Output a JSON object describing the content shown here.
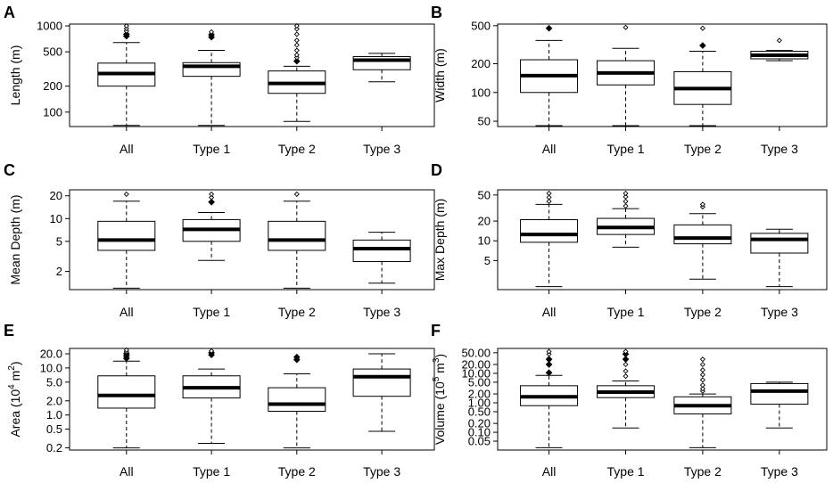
{
  "chart_data": [
    {
      "panel": "A",
      "type": "boxplot",
      "scale": "log",
      "ylabel": "Length (m)",
      "ylabel_parts": [
        "Length (m)"
      ],
      "yticks": [
        100,
        200,
        500,
        1000
      ],
      "ytick_labels": [
        "100",
        "200",
        "500",
        "1000"
      ],
      "ylim": [
        68,
        1050
      ],
      "categories": [
        "All",
        "Type 1",
        "Type 2",
        "Type 3"
      ],
      "boxes": [
        {
          "lo": 70,
          "q1": 200,
          "med": 280,
          "q3": 370,
          "hi": 640,
          "outliers": [
            760,
            800,
            870,
            930,
            1000
          ],
          "filled": [
            760,
            800
          ]
        },
        {
          "lo": 70,
          "q1": 260,
          "med": 340,
          "q3": 375,
          "hi": 520,
          "outliers": [
            740,
            790,
            850
          ],
          "filled": [
            740,
            790
          ]
        },
        {
          "lo": 78,
          "q1": 165,
          "med": 215,
          "q3": 300,
          "hi": 340,
          "outliers": [
            390,
            430,
            460,
            520,
            600,
            680,
            800,
            920,
            1000
          ],
          "filled": [
            390
          ]
        },
        {
          "lo": 225,
          "q1": 310,
          "med": 400,
          "q3": 440,
          "hi": 480,
          "outliers": [],
          "filled": []
        }
      ]
    },
    {
      "panel": "B",
      "type": "boxplot",
      "scale": "log",
      "ylabel": "Width (m)",
      "ylabel_parts": [
        "Width (m)"
      ],
      "yticks": [
        50,
        100,
        200,
        500
      ],
      "ytick_labels": [
        "50",
        "100",
        "200",
        "500"
      ],
      "ylim": [
        44,
        520
      ],
      "categories": [
        "All",
        "Type 1",
        "Type 2",
        "Type 3"
      ],
      "boxes": [
        {
          "lo": 45,
          "q1": 100,
          "med": 150,
          "q3": 220,
          "hi": 350,
          "outliers": [
            470
          ],
          "filled": [
            470
          ]
        },
        {
          "lo": 45,
          "q1": 120,
          "med": 160,
          "q3": 215,
          "hi": 290,
          "outliers": [
            480
          ],
          "filled": []
        },
        {
          "lo": 45,
          "q1": 75,
          "med": 110,
          "q3": 165,
          "hi": 270,
          "outliers": [
            310,
            470
          ],
          "filled": [
            310
          ]
        },
        {
          "lo": 215,
          "q1": 225,
          "med": 245,
          "q3": 270,
          "hi": 275,
          "outliers": [
            350
          ],
          "filled": []
        }
      ]
    },
    {
      "panel": "C",
      "type": "boxplot",
      "scale": "log",
      "ylabel": "Mean Depth (m)",
      "ylabel_parts": [
        "Mean Depth (m)"
      ],
      "yticks": [
        2,
        5,
        10,
        20
      ],
      "ytick_labels": [
        "2",
        "5",
        "10",
        "20"
      ],
      "ylim": [
        1.15,
        24
      ],
      "categories": [
        "All",
        "Type 1",
        "Type 2",
        "Type 3"
      ],
      "boxes": [
        {
          "lo": 1.2,
          "q1": 3.8,
          "med": 5.2,
          "q3": 9.2,
          "hi": 17,
          "outliers": [
            21
          ],
          "filled": []
        },
        {
          "lo": 2.8,
          "q1": 5,
          "med": 7.2,
          "q3": 9.7,
          "hi": 12,
          "outliers": [
            16.5,
            19,
            21
          ],
          "filled": [
            16.5
          ]
        },
        {
          "lo": 1.2,
          "q1": 3.8,
          "med": 5.2,
          "q3": 9.2,
          "hi": 17,
          "outliers": [
            21
          ],
          "filled": []
        },
        {
          "lo": 1.4,
          "q1": 2.7,
          "med": 4,
          "q3": 5.2,
          "hi": 6.6,
          "outliers": [],
          "filled": []
        }
      ]
    },
    {
      "panel": "D",
      "type": "boxplot",
      "scale": "log",
      "ylabel": "Max Depth (m)",
      "ylabel_parts": [
        "Max Depth (m)"
      ],
      "yticks": [
        5,
        10,
        20,
        50
      ],
      "ytick_labels": [
        "5",
        "10",
        "20",
        "50"
      ],
      "ylim": [
        1.8,
        60
      ],
      "categories": [
        "All",
        "Type 1",
        "Type 2",
        "Type 3"
      ],
      "boxes": [
        {
          "lo": 2,
          "q1": 9.5,
          "med": 12.5,
          "q3": 21,
          "hi": 36,
          "outliers": [
            40,
            46,
            53
          ],
          "filled": []
        },
        {
          "lo": 8,
          "q1": 12.5,
          "med": 16,
          "q3": 22,
          "hi": 31,
          "outliers": [
            34,
            40,
            47,
            53
          ],
          "filled": []
        },
        {
          "lo": 2.6,
          "q1": 9,
          "med": 11,
          "q3": 17.5,
          "hi": 26,
          "outliers": [
            33,
            36
          ],
          "filled": []
        },
        {
          "lo": 2,
          "q1": 6.5,
          "med": 10.5,
          "q3": 13,
          "hi": 15,
          "outliers": [],
          "filled": []
        }
      ]
    },
    {
      "panel": "E",
      "type": "boxplot",
      "scale": "log",
      "ylabel": "Area (10^4 m^2)",
      "ylabel_parts": [
        "Area (10",
        "4",
        " m",
        "2",
        ")"
      ],
      "yticks": [
        0.2,
        0.5,
        1.0,
        2.0,
        5.0,
        10.0,
        20.0
      ],
      "ytick_labels": [
        "0.2",
        "0.5",
        "1.0",
        "2.0",
        "5.0",
        "10.0",
        "20.0"
      ],
      "ylim": [
        0.18,
        26
      ],
      "categories": [
        "All",
        "Type 1",
        "Type 2",
        "Type 3"
      ],
      "boxes": [
        {
          "lo": 0.2,
          "q1": 1.4,
          "med": 2.6,
          "q3": 6.8,
          "hi": 14,
          "outliers": [
            16,
            18,
            20,
            22,
            24
          ],
          "filled": [
            16,
            18,
            20
          ]
        },
        {
          "lo": 0.25,
          "q1": 2.3,
          "med": 3.8,
          "q3": 6.8,
          "hi": 9.5,
          "outliers": [
            19,
            21,
            23
          ],
          "filled": [
            19,
            21
          ]
        },
        {
          "lo": 0.2,
          "q1": 1.2,
          "med": 1.7,
          "q3": 3.8,
          "hi": 7.5,
          "outliers": [
            15,
            17
          ],
          "filled": [
            15,
            17
          ]
        },
        {
          "lo": 0.45,
          "q1": 2.5,
          "med": 6.5,
          "q3": 9.5,
          "hi": 20,
          "outliers": [],
          "filled": []
        }
      ]
    },
    {
      "panel": "F",
      "type": "boxplot",
      "scale": "log",
      "ylabel": "Volume (10^5 m^3)",
      "ylabel_parts": [
        "Volume (10",
        "5",
        " m",
        "3",
        ")"
      ],
      "yticks": [
        0.05,
        0.1,
        0.2,
        0.5,
        1.0,
        2.0,
        5.0,
        10.0,
        20.0,
        50.0
      ],
      "ytick_labels": [
        "0.05",
        "0.10",
        "0.20",
        "0.50",
        "1.00",
        "2.00",
        "5.00",
        "10.00",
        "20.00",
        "50.00"
      ],
      "ylim": [
        0.025,
        70
      ],
      "categories": [
        "All",
        "Type 1",
        "Type 2",
        "Type 3"
      ],
      "boxes": [
        {
          "lo": 0.03,
          "q1": 0.8,
          "med": 1.6,
          "q3": 3.8,
          "hi": 8.5,
          "outliers": [
            10.5,
            20,
            30,
            45,
            55
          ],
          "filled": [
            10.5,
            20,
            30
          ]
        },
        {
          "lo": 0.14,
          "q1": 1.5,
          "med": 2.3,
          "q3": 3.8,
          "hi": 5.5,
          "outliers": [
            8,
            12,
            20,
            30,
            45,
            55
          ],
          "filled": [
            30,
            45
          ]
        },
        {
          "lo": 0.03,
          "q1": 0.42,
          "med": 0.8,
          "q3": 1.6,
          "hi": 2,
          "outliers": [
            2.5,
            3,
            4,
            6,
            9,
            13,
            20,
            30
          ],
          "filled": []
        },
        {
          "lo": 0.14,
          "q1": 0.9,
          "med": 2.5,
          "q3": 4.5,
          "hi": 5,
          "outliers": [],
          "filled": []
        }
      ]
    }
  ]
}
